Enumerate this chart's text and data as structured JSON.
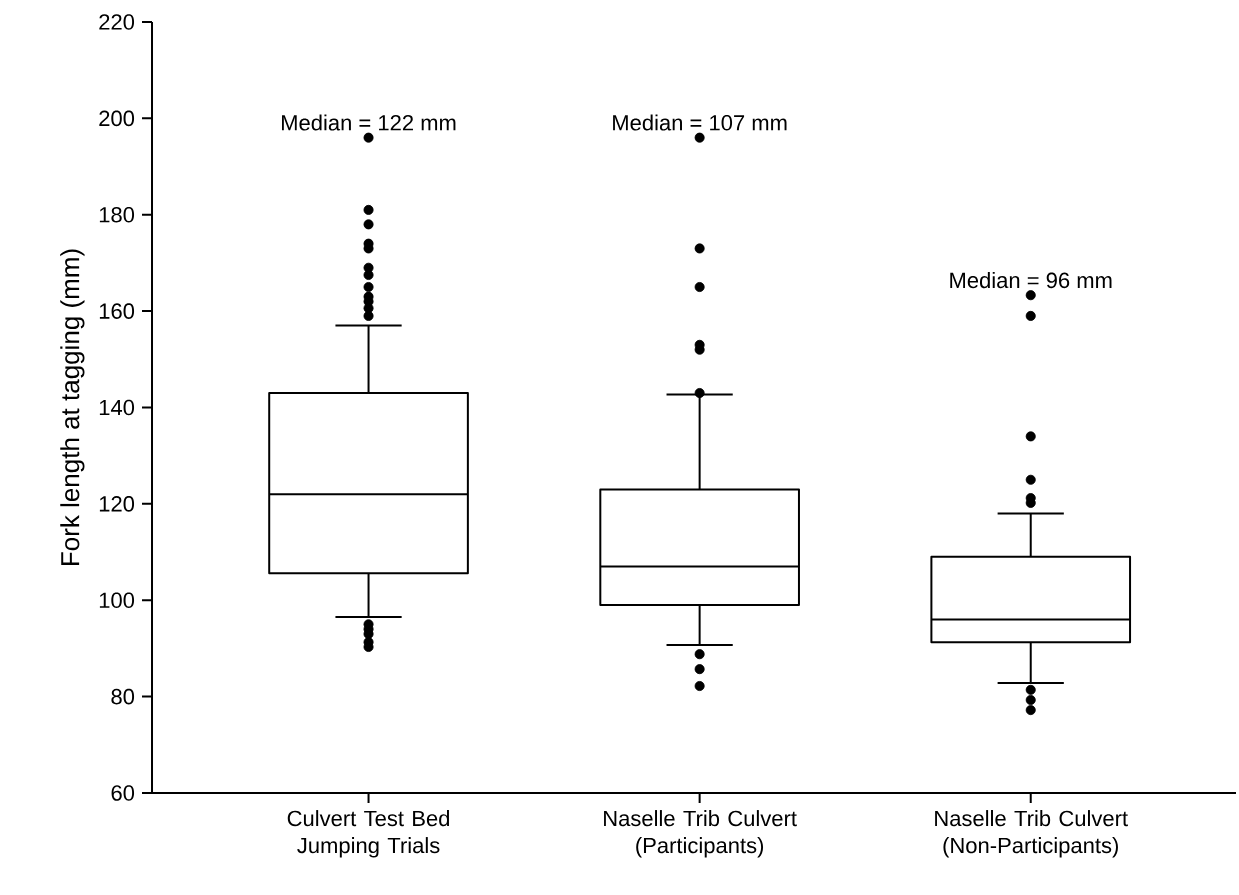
{
  "chart_data": {
    "type": "box",
    "ylabel": "Fork length at tagging (mm)",
    "categories": [
      "Culvert Test Bed Jumping Trials",
      "Naselle Trib Culvert (Participants)",
      "Naselle Trib Culvert (Non-Participants)"
    ],
    "ylim": [
      60,
      220
    ],
    "yticks": [
      60,
      80,
      100,
      120,
      140,
      160,
      180,
      200,
      220
    ],
    "boxes": [
      {
        "low": 96.5,
        "q1": 105.6,
        "median": 122,
        "q3": 143,
        "high": 157,
        "outliers": [
          196,
          181,
          178,
          174,
          173,
          169,
          167.5,
          165,
          163,
          162,
          160.6,
          159,
          95,
          94,
          93,
          91.3,
          90.3
        ]
      },
      {
        "low": 90.7,
        "q1": 99,
        "median": 107,
        "q3": 123,
        "high": 142.7,
        "outliers": [
          196,
          173,
          165,
          153,
          152,
          143,
          88.8,
          85.7,
          82.2
        ]
      },
      {
        "low": 82.8,
        "q1": 91.3,
        "median": 96,
        "q3": 109,
        "high": 118,
        "outliers": [
          163.3,
          159,
          134,
          125,
          121.2,
          120.2,
          81.4,
          79.3,
          77.2
        ]
      }
    ],
    "annotations": [
      "Median = 122 mm",
      "Median = 107 mm",
      "Median = 96 mm"
    ]
  }
}
